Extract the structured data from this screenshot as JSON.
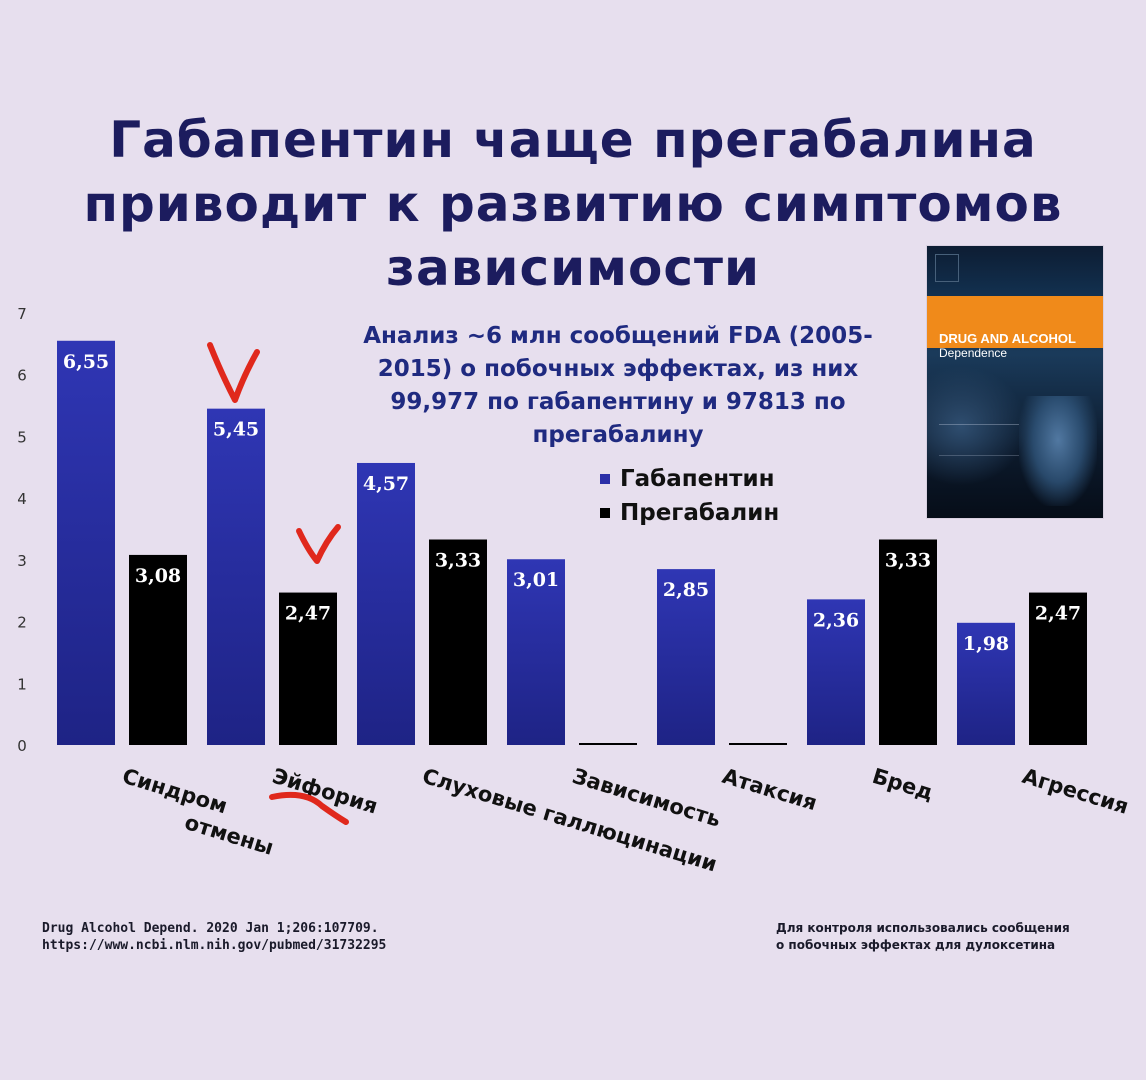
{
  "title_lines": [
    "Габапентин чаще прегабалина",
    "приводит к развитию симптомов",
    "зависимости"
  ],
  "subtitle_lines": [
    "Анализ ~6 млн сообщений FDA (2005-",
    "2015) о побочных эффектах, из них",
    "99,977 по габапентину и 97813 по",
    "прегабалину"
  ],
  "colors": {
    "gabapentin": "#2b2fa8",
    "pregabalin": "#000000",
    "annotation": "#e0281c",
    "title": "#1c1c5e"
  },
  "cover": {
    "journal_title": "DRUG AND ALCOHOL",
    "journal_subtitle": "Dependence"
  },
  "chart_data": {
    "type": "bar",
    "categories": [
      "Синдром отмены",
      "Эйфория",
      "Слуховые галлюцинации",
      "Зависимость",
      "Атаксия",
      "Бред",
      "Агрессия"
    ],
    "series": [
      {
        "name": "Габапентин",
        "values": [
          6.55,
          5.45,
          4.57,
          3.01,
          2.85,
          2.36,
          1.98
        ],
        "labels": [
          "6,55",
          "5,45",
          "4,57",
          "3,01",
          "2,85",
          "2,36",
          "1,98"
        ]
      },
      {
        "name": "Прегабалин",
        "values": [
          3.08,
          2.47,
          3.33,
          0,
          0,
          3.33,
          2.47
        ],
        "labels": [
          "3,08",
          "2,47",
          "3,33",
          "",
          "",
          "3,33",
          "2,47"
        ]
      }
    ],
    "yticks": [
      0,
      1,
      2,
      3,
      4,
      5,
      6,
      7
    ],
    "ylim": [
      0,
      7
    ],
    "grid": false,
    "legend_position": "top-right"
  },
  "footer": {
    "source_lines": [
      "Drug Alcohol Depend. 2020 Jan 1;206:107709.",
      "https://www.ncbi.nlm.nih.gov/pubmed/31732295"
    ],
    "note_lines": [
      "Для контроля использовались сообщения",
      "о побочных эффектах для дулоксетина"
    ]
  }
}
